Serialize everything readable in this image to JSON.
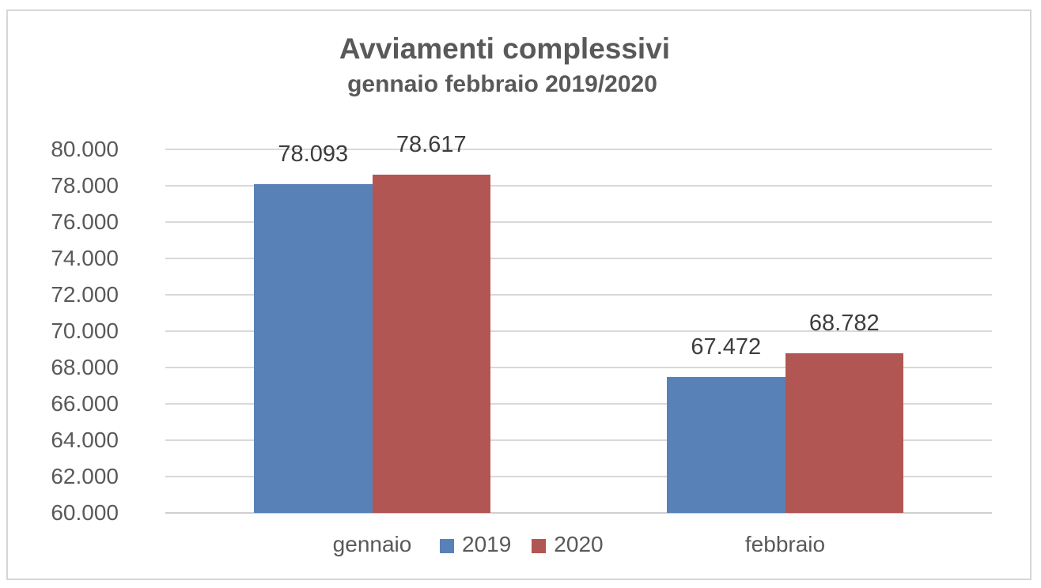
{
  "chart_data": {
    "type": "bar",
    "title": "Avviamenti complessivi",
    "subtitle": "gennaio febbraio 2019/2020",
    "categories": [
      "gennaio",
      "febbraio"
    ],
    "series": [
      {
        "name": "2019",
        "color": "#5881b8",
        "values": [
          78093,
          67472
        ],
        "labels": [
          "78.093",
          "67.472"
        ]
      },
      {
        "name": "2020",
        "color": "#b25653",
        "values": [
          78617,
          68782
        ],
        "labels": [
          "78.617",
          "68.782"
        ]
      }
    ],
    "y_axis": {
      "min": 60000,
      "max": 80000,
      "step": 2000,
      "tick_labels": [
        "80.000",
        "78.000",
        "76.000",
        "74.000",
        "72.000",
        "70.000",
        "68.000",
        "66.000",
        "64.000",
        "62.000",
        "60.000"
      ]
    },
    "legend": {
      "position": "bottom",
      "entries": [
        "2019",
        "2020"
      ]
    },
    "grid": true,
    "colors": {
      "series_2019": "#5881b8",
      "series_2020": "#b25653",
      "gridline": "#d9d9d9",
      "text": "#595959",
      "data_label": "#3d3d3d",
      "frame_border": "#d6d6d6"
    }
  }
}
